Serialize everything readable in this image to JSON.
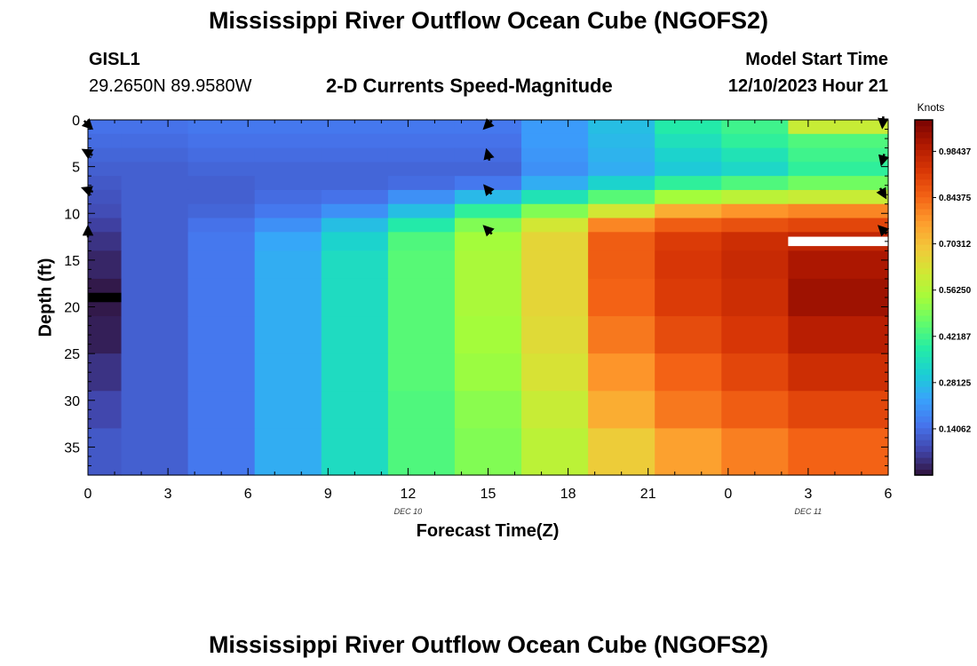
{
  "header": {
    "title": "Mississippi River Outflow Ocean Cube (NGOFS2)",
    "station": "GISL1",
    "coordinates": "29.2650N  89.9580W",
    "subtitle": "2-D Currents Speed-Magnitude",
    "model_start_label": "Model Start Time",
    "model_start_value": "12/10/2023 Hour 21"
  },
  "footer": {
    "title": "Mississippi River Outflow Ocean Cube (NGOFS2)"
  },
  "chart_data": {
    "type": "heatmap",
    "title": "2-D Currents Speed-Magnitude",
    "xlabel": "Forecast Time(Z)",
    "ylabel": "Depth (ft)",
    "x_tick_labels": [
      "0",
      "3",
      "6",
      "9",
      "12",
      "15",
      "18",
      "21",
      "0",
      "3",
      "6"
    ],
    "date_labels": [
      {
        "text": "DEC 10",
        "at_tick": 4
      },
      {
        "text": "DEC 11",
        "at_tick": 9
      }
    ],
    "y_ticks": [
      0,
      5,
      10,
      15,
      20,
      25,
      30,
      35
    ],
    "ylim": [
      38,
      0
    ],
    "n_columns": 12,
    "column_time_hours": [
      0,
      2.5,
      5,
      7.5,
      10,
      12.5,
      15,
      17.5,
      20,
      22.5,
      25,
      27.5
    ],
    "depth_bands_ft": [
      0,
      1.5,
      3,
      4.5,
      6,
      7.5,
      9,
      10.5,
      12,
      14,
      17,
      21,
      25,
      29,
      33,
      38
    ],
    "speed_knots": [
      [
        0.15,
        0.15,
        0.16,
        0.16,
        0.16,
        0.16,
        0.16,
        0.22,
        0.28,
        0.38,
        0.42,
        0.6
      ],
      [
        0.14,
        0.14,
        0.15,
        0.15,
        0.15,
        0.15,
        0.15,
        0.22,
        0.27,
        0.35,
        0.4,
        0.44
      ],
      [
        0.13,
        0.13,
        0.14,
        0.14,
        0.14,
        0.14,
        0.14,
        0.21,
        0.26,
        0.32,
        0.36,
        0.42
      ],
      [
        0.12,
        0.12,
        0.13,
        0.13,
        0.13,
        0.13,
        0.13,
        0.2,
        0.25,
        0.3,
        0.33,
        0.4
      ],
      [
        0.11,
        0.12,
        0.12,
        0.13,
        0.13,
        0.14,
        0.16,
        0.25,
        0.32,
        0.4,
        0.44,
        0.48
      ],
      [
        0.1,
        0.12,
        0.12,
        0.14,
        0.15,
        0.2,
        0.27,
        0.36,
        0.45,
        0.54,
        0.58,
        0.6
      ],
      [
        0.09,
        0.12,
        0.13,
        0.16,
        0.2,
        0.28,
        0.4,
        0.5,
        0.62,
        0.74,
        0.78,
        0.8
      ],
      [
        0.07,
        0.12,
        0.15,
        0.2,
        0.28,
        0.38,
        0.5,
        0.62,
        0.8,
        0.86,
        0.88,
        0.9
      ],
      [
        0.05,
        0.12,
        0.16,
        0.24,
        0.32,
        0.44,
        0.54,
        0.66,
        0.86,
        0.92,
        0.95,
        0.97
      ],
      [
        0.03,
        0.12,
        0.16,
        0.25,
        0.34,
        0.45,
        0.55,
        0.66,
        0.86,
        0.93,
        0.96,
        1.01
      ],
      [
        0.01,
        0.12,
        0.16,
        0.25,
        0.34,
        0.45,
        0.55,
        0.66,
        0.85,
        0.92,
        0.95,
        1.03
      ],
      [
        0.02,
        0.12,
        0.16,
        0.25,
        0.34,
        0.45,
        0.54,
        0.65,
        0.82,
        0.89,
        0.93,
        0.99
      ],
      [
        0.05,
        0.12,
        0.16,
        0.25,
        0.34,
        0.45,
        0.53,
        0.63,
        0.78,
        0.85,
        0.9,
        0.95
      ],
      [
        0.08,
        0.12,
        0.16,
        0.25,
        0.34,
        0.44,
        0.51,
        0.6,
        0.74,
        0.82,
        0.86,
        0.9
      ],
      [
        0.11,
        0.12,
        0.16,
        0.25,
        0.34,
        0.44,
        0.5,
        0.58,
        0.68,
        0.76,
        0.81,
        0.85
      ]
    ],
    "missing_cells": [
      {
        "column": 0,
        "depth_ft": [
          18.5,
          19.5
        ],
        "color": "#000000"
      },
      {
        "column": 11,
        "depth_ft": [
          12.5,
          13.5
        ],
        "color": "#ffffff"
      }
    ],
    "current_arrows": [
      {
        "time_h": 0,
        "depth_ft": 0.5,
        "dir_deg": 135
      },
      {
        "time_h": 0,
        "depth_ft": 3.5,
        "dir_deg": 300
      },
      {
        "time_h": 0,
        "depth_ft": 7.5,
        "dir_deg": 290
      },
      {
        "time_h": 0,
        "depth_ft": 12,
        "dir_deg": 0
      },
      {
        "time_h": 15,
        "depth_ft": 0.5,
        "dir_deg": 225
      },
      {
        "time_h": 15,
        "depth_ft": 3.8,
        "dir_deg": 345
      },
      {
        "time_h": 15,
        "depth_ft": 7.5,
        "dir_deg": 320
      },
      {
        "time_h": 15,
        "depth_ft": 11.8,
        "dir_deg": 315
      },
      {
        "time_h": 30,
        "depth_ft": 0.2,
        "dir_deg": 185
      },
      {
        "time_h": 30,
        "depth_ft": 4.2,
        "dir_deg": 195
      },
      {
        "time_h": 30,
        "depth_ft": 7.8,
        "dir_deg": 150
      },
      {
        "time_h": 30,
        "depth_ft": 11.8,
        "dir_deg": 315
      }
    ],
    "colorbar": {
      "label": "Knots",
      "min": 0,
      "max": 1.08,
      "tick_values": [
        0.14062,
        0.28125,
        0.42187,
        0.5625,
        0.70312,
        0.84375,
        0.98437
      ],
      "tick_labels": [
        "0.14062",
        "0.28125",
        "0.42187",
        "0.56250",
        "0.70312",
        "0.84375",
        "0.98437"
      ],
      "colormap": [
        "#30123b",
        "#4145ab",
        "#4675ed",
        "#39a2fc",
        "#1bcfd4",
        "#24eca6",
        "#61fc6c",
        "#a4fc3b",
        "#d1e834",
        "#f3c63a",
        "#fe9b2d",
        "#f36315",
        "#d93806",
        "#b11901",
        "#7a0402"
      ]
    }
  }
}
